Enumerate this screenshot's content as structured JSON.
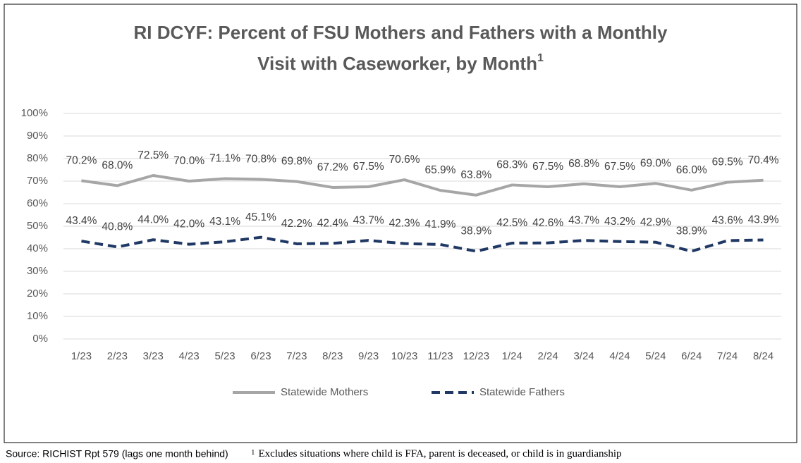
{
  "chart_data": {
    "type": "line",
    "title": [
      "RI DCYF: Percent of FSU Mothers and Fathers with a Monthly",
      "Visit with Caseworker, by Month"
    ],
    "title_note_mark": "1",
    "categories": [
      "1/23",
      "2/23",
      "3/23",
      "4/23",
      "5/23",
      "6/23",
      "7/23",
      "8/23",
      "9/23",
      "10/23",
      "11/23",
      "12/23",
      "1/24",
      "2/24",
      "3/24",
      "4/24",
      "5/24",
      "6/24",
      "7/24",
      "8/24"
    ],
    "series": [
      {
        "name": "Statewide Mothers",
        "color": "#a6a6a6",
        "dash": false,
        "values": [
          70.2,
          68.0,
          72.5,
          70.0,
          71.1,
          70.8,
          69.8,
          67.2,
          67.5,
          70.6,
          65.9,
          63.8,
          68.3,
          67.5,
          68.8,
          67.5,
          69.0,
          66.0,
          69.5,
          70.4
        ],
        "value_labels": [
          "70.2%",
          "68.0%",
          "72.5%",
          "70.0%",
          "71.1%",
          "70.8%",
          "69.8%",
          "67.2%",
          "67.5%",
          "70.6%",
          "65.9%",
          "63.8%",
          "68.3%",
          "67.5%",
          "68.8%",
          "67.5%",
          "69.0%",
          "66.0%",
          "69.5%",
          "70.4%"
        ]
      },
      {
        "name": "Statewide Fathers",
        "color": "#203864",
        "dash": true,
        "values": [
          43.4,
          40.8,
          44.0,
          42.0,
          43.1,
          45.1,
          42.2,
          42.4,
          43.7,
          42.3,
          41.9,
          38.9,
          42.5,
          42.6,
          43.7,
          43.2,
          42.9,
          38.9,
          43.6,
          43.9
        ],
        "value_labels": [
          "43.4%",
          "40.8%",
          "44.0%",
          "42.0%",
          "43.1%",
          "45.1%",
          "42.2%",
          "42.4%",
          "43.7%",
          "42.3%",
          "41.9%",
          "38.9%",
          "42.5%",
          "42.6%",
          "43.7%",
          "43.2%",
          "42.9%",
          "38.9%",
          "43.6%",
          "43.9%"
        ]
      }
    ],
    "ylim": [
      0,
      100
    ],
    "yticks": [
      {
        "value": 0,
        "label": "0%"
      },
      {
        "value": 10,
        "label": "10%"
      },
      {
        "value": 20,
        "label": "20%"
      },
      {
        "value": 30,
        "label": "30%"
      },
      {
        "value": 40,
        "label": "40%"
      },
      {
        "value": 50,
        "label": "50%"
      },
      {
        "value": 60,
        "label": "60%"
      },
      {
        "value": 70,
        "label": "70%"
      },
      {
        "value": 80,
        "label": "80%"
      },
      {
        "value": 90,
        "label": "90%"
      },
      {
        "value": 100,
        "label": "100%"
      }
    ],
    "grid": true,
    "legend": "bottom",
    "source": "Source: RICHIST Rpt 579 (lags one month behind)",
    "footnote": {
      "mark": "1",
      "text": "Excludes situations where child is FFA, parent is deceased, or child is in guardianship"
    }
  }
}
